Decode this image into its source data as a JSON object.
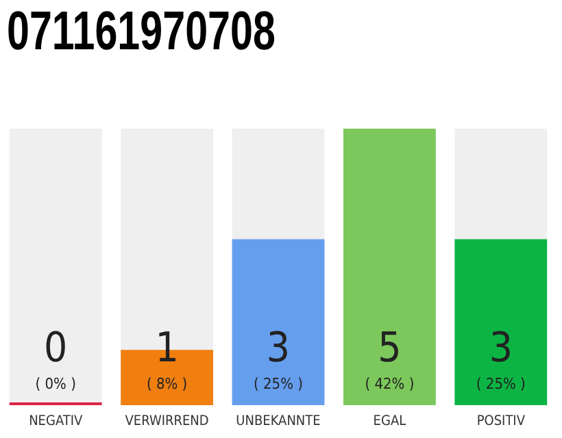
{
  "chart_data": {
    "type": "bar",
    "title": "071161970708",
    "categories": [
      "NEGATIV",
      "VERWIRREND",
      "UNBEKANNTE",
      "EGAL",
      "POSITIV"
    ],
    "values": [
      0,
      1,
      3,
      5,
      3
    ],
    "colors": [
      "#dd2244",
      "#f07f0f",
      "#669eee",
      "#7cc85c",
      "#0cb444"
    ],
    "data_labels": true,
    "grid": false,
    "legend": false,
    "tick_labels": "x",
    "annotations": [
      "( 0% )",
      "( 8% )",
      "( 25% )",
      "( 42% )",
      "( 25% )"
    ]
  }
}
